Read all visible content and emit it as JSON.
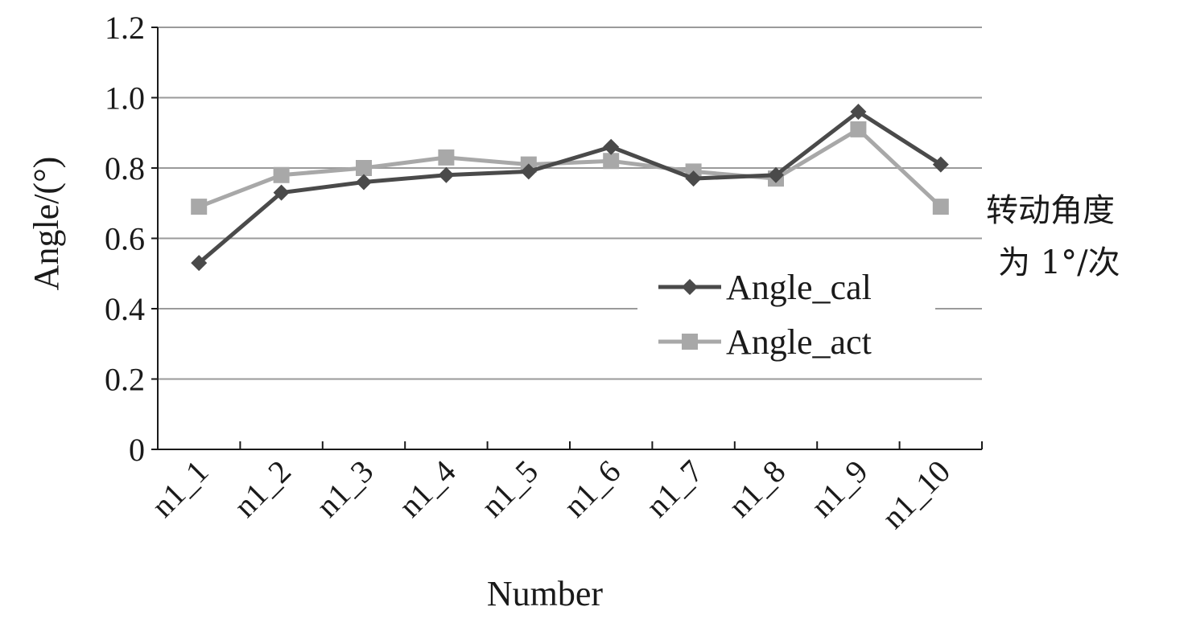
{
  "chart_data": {
    "type": "line",
    "categories": [
      "n1_1",
      "n1_2",
      "n1_3",
      "n1_4",
      "n1_5",
      "n1_6",
      "n1_7",
      "n1_8",
      "n1_9",
      "n1_10"
    ],
    "series": [
      {
        "name": "Angle_cal",
        "values": [
          0.53,
          0.73,
          0.76,
          0.78,
          0.79,
          0.86,
          0.77,
          0.78,
          0.96,
          0.81
        ],
        "color": "#4a4a4a",
        "marker": "diamond"
      },
      {
        "name": "Angle_act",
        "values": [
          0.69,
          0.78,
          0.8,
          0.83,
          0.81,
          0.82,
          0.79,
          0.77,
          0.91,
          0.69
        ],
        "color": "#a8a8a8",
        "marker": "square"
      }
    ],
    "xlabel": "Number",
    "ylabel": "Angle/(°)",
    "ylim": [
      0,
      1.2
    ],
    "yticks": [
      "0",
      "0.2",
      "0.4",
      "0.6",
      "0.8",
      "1.0",
      "1.2"
    ],
    "grid": true,
    "legend_position": "right",
    "annotation": [
      "转动角度",
      "为 1°/次"
    ]
  }
}
